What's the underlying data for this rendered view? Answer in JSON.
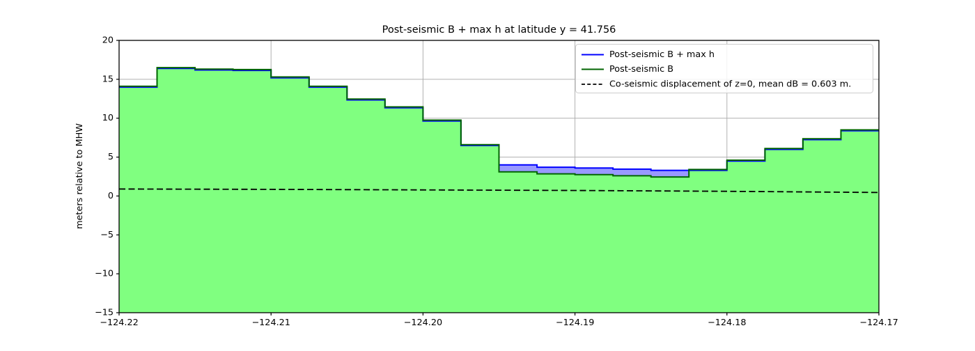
{
  "figure": {
    "title": "Post-seismic B + max h at latitude y = 41.756"
  },
  "chart_data": {
    "type": "area",
    "title": "Post-seismic B + max h at latitude y = 41.756",
    "xlabel": "",
    "ylabel": "meters relative to MHW",
    "xlim": [
      -124.22,
      -124.17
    ],
    "ylim": [
      -15,
      20
    ],
    "grid": true,
    "grid_color": "#b0b0b0",
    "background_color": "#ffffff",
    "xtick_values": [
      -124.22,
      -124.21,
      -124.2,
      -124.19,
      -124.18,
      -124.17
    ],
    "xtick_labels": [
      "−124.22",
      "−124.21",
      "−124.20",
      "−124.19",
      "−124.18",
      "−124.17"
    ],
    "ytick_values": [
      -15,
      -10,
      -5,
      0,
      5,
      10,
      15,
      20
    ],
    "ytick_labels": [
      "−15",
      "−10",
      "−5",
      "0",
      "5",
      "10",
      "15",
      "20"
    ],
    "cell_edges": [
      -124.22,
      -124.2175,
      -124.215,
      -124.2125,
      -124.21,
      -124.2075,
      -124.205,
      -124.2025,
      -124.2,
      -124.1975,
      -124.195,
      -124.1925,
      -124.19,
      -124.1875,
      -124.185,
      -124.1825,
      -124.18,
      -124.1775,
      -124.175,
      -124.1725,
      -124.17
    ],
    "series": [
      {
        "name": "Post-seismic B + max h",
        "type": "step",
        "color": "#0000ff",
        "fill": "#9999ff",
        "values": [
          14.1,
          16.5,
          16.3,
          16.25,
          15.3,
          14.1,
          12.45,
          11.45,
          9.75,
          6.6,
          4.0,
          3.7,
          3.6,
          3.45,
          3.3,
          3.4,
          4.6,
          6.1,
          7.35,
          8.5
        ]
      },
      {
        "name": "Post-seismic B",
        "type": "step",
        "color": "#006400",
        "fill": "#80ff80",
        "values": [
          14.1,
          16.5,
          16.3,
          16.25,
          15.3,
          14.1,
          12.45,
          11.45,
          9.75,
          6.6,
          3.1,
          2.85,
          2.75,
          2.6,
          2.45,
          3.4,
          4.6,
          6.1,
          7.35,
          8.5
        ]
      },
      {
        "name": "Co-seismic displacement of z=0, mean dB = 0.603 m.",
        "type": "line",
        "style": "dashed",
        "color": "#000000",
        "x": [
          -124.22,
          -124.21,
          -124.2,
          -124.19,
          -124.18,
          -124.17
        ],
        "y": [
          0.9,
          0.85,
          0.78,
          0.71,
          0.6,
          0.45
        ]
      }
    ],
    "legend": {
      "position": "upper right",
      "entries": [
        "Post-seismic B + max h",
        "Post-seismic B",
        "Co-seismic displacement of z=0, mean dB = 0.603 m."
      ]
    }
  }
}
